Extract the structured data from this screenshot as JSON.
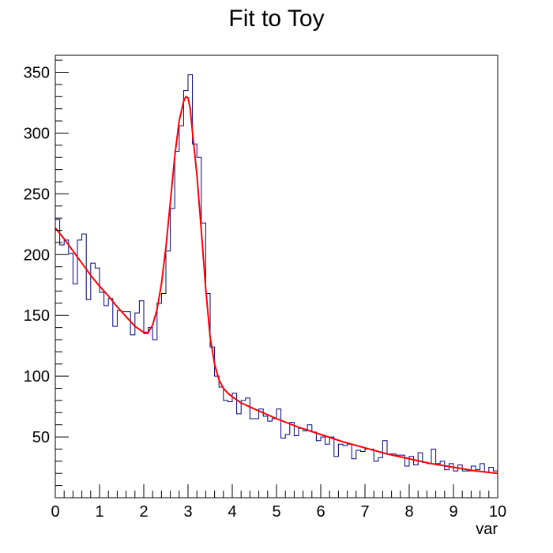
{
  "chart_data": {
    "type": "line",
    "title": "Fit to Toy",
    "xlabel": "var",
    "ylabel": "",
    "xlim": [
      0,
      10
    ],
    "ylim": [
      0,
      364
    ],
    "grid": false,
    "x_ticks": [
      "0",
      "1",
      "2",
      "3",
      "4",
      "5",
      "6",
      "7",
      "8",
      "9",
      "10"
    ],
    "y_ticks": [
      "50",
      "100",
      "150",
      "200",
      "250",
      "300",
      "350"
    ],
    "colors": {
      "histogram": "#000080",
      "fit": "#ff0000",
      "frame": "#000000"
    },
    "series": [
      {
        "kind": "histogram",
        "bin_width": 0.1,
        "x_start": 0,
        "values": [
          229,
          208,
          212,
          201,
          176,
          212,
          217,
          163,
          193,
          189,
          169,
          158,
          164,
          141,
          154,
          153,
          153,
          134,
          152,
          162,
          135,
          140,
          130,
          160,
          168,
          203,
          238,
          285,
          306,
          335,
          348,
          291,
          280,
          226,
          168,
          124,
          100,
          91,
          80,
          79,
          86,
          69,
          80,
          82,
          65,
          65,
          73,
          67,
          63,
          65,
          73,
          49,
          52,
          62,
          51,
          57,
          55,
          60,
          54,
          47,
          50,
          44,
          50,
          34,
          44,
          43,
          44,
          32,
          39,
          38,
          40,
          40,
          30,
          33,
          47,
          36,
          36,
          35,
          35,
          26,
          34,
          27,
          37,
          29,
          28,
          40,
          28,
          30,
          23,
          28,
          22,
          27,
          22,
          22,
          26,
          23,
          28,
          21,
          25,
          22
        ]
      },
      {
        "kind": "curve",
        "x": [
          0,
          0.2,
          0.4,
          0.6,
          0.8,
          1.0,
          1.2,
          1.4,
          1.6,
          1.8,
          2.0,
          2.1,
          2.2,
          2.3,
          2.4,
          2.5,
          2.6,
          2.7,
          2.8,
          2.9,
          2.95,
          3.0,
          3.05,
          3.1,
          3.2,
          3.3,
          3.4,
          3.5,
          3.6,
          3.7,
          3.8,
          3.9,
          4.0,
          4.2,
          4.5,
          5.0,
          5.5,
          6.0,
          6.5,
          7.0,
          7.5,
          8.0,
          8.5,
          9.0,
          9.5,
          10.0
        ],
        "y": [
          222,
          213,
          203,
          193,
          183,
          174,
          166,
          157,
          149,
          141,
          136,
          136,
          142,
          155,
          176,
          206,
          243,
          281,
          310,
          326,
          330,
          329,
          320,
          301,
          266,
          220,
          172,
          132,
          110,
          97,
          90,
          86,
          83,
          78,
          73,
          65,
          58,
          52,
          46,
          41,
          36,
          32,
          28,
          25,
          22,
          20
        ]
      }
    ]
  }
}
